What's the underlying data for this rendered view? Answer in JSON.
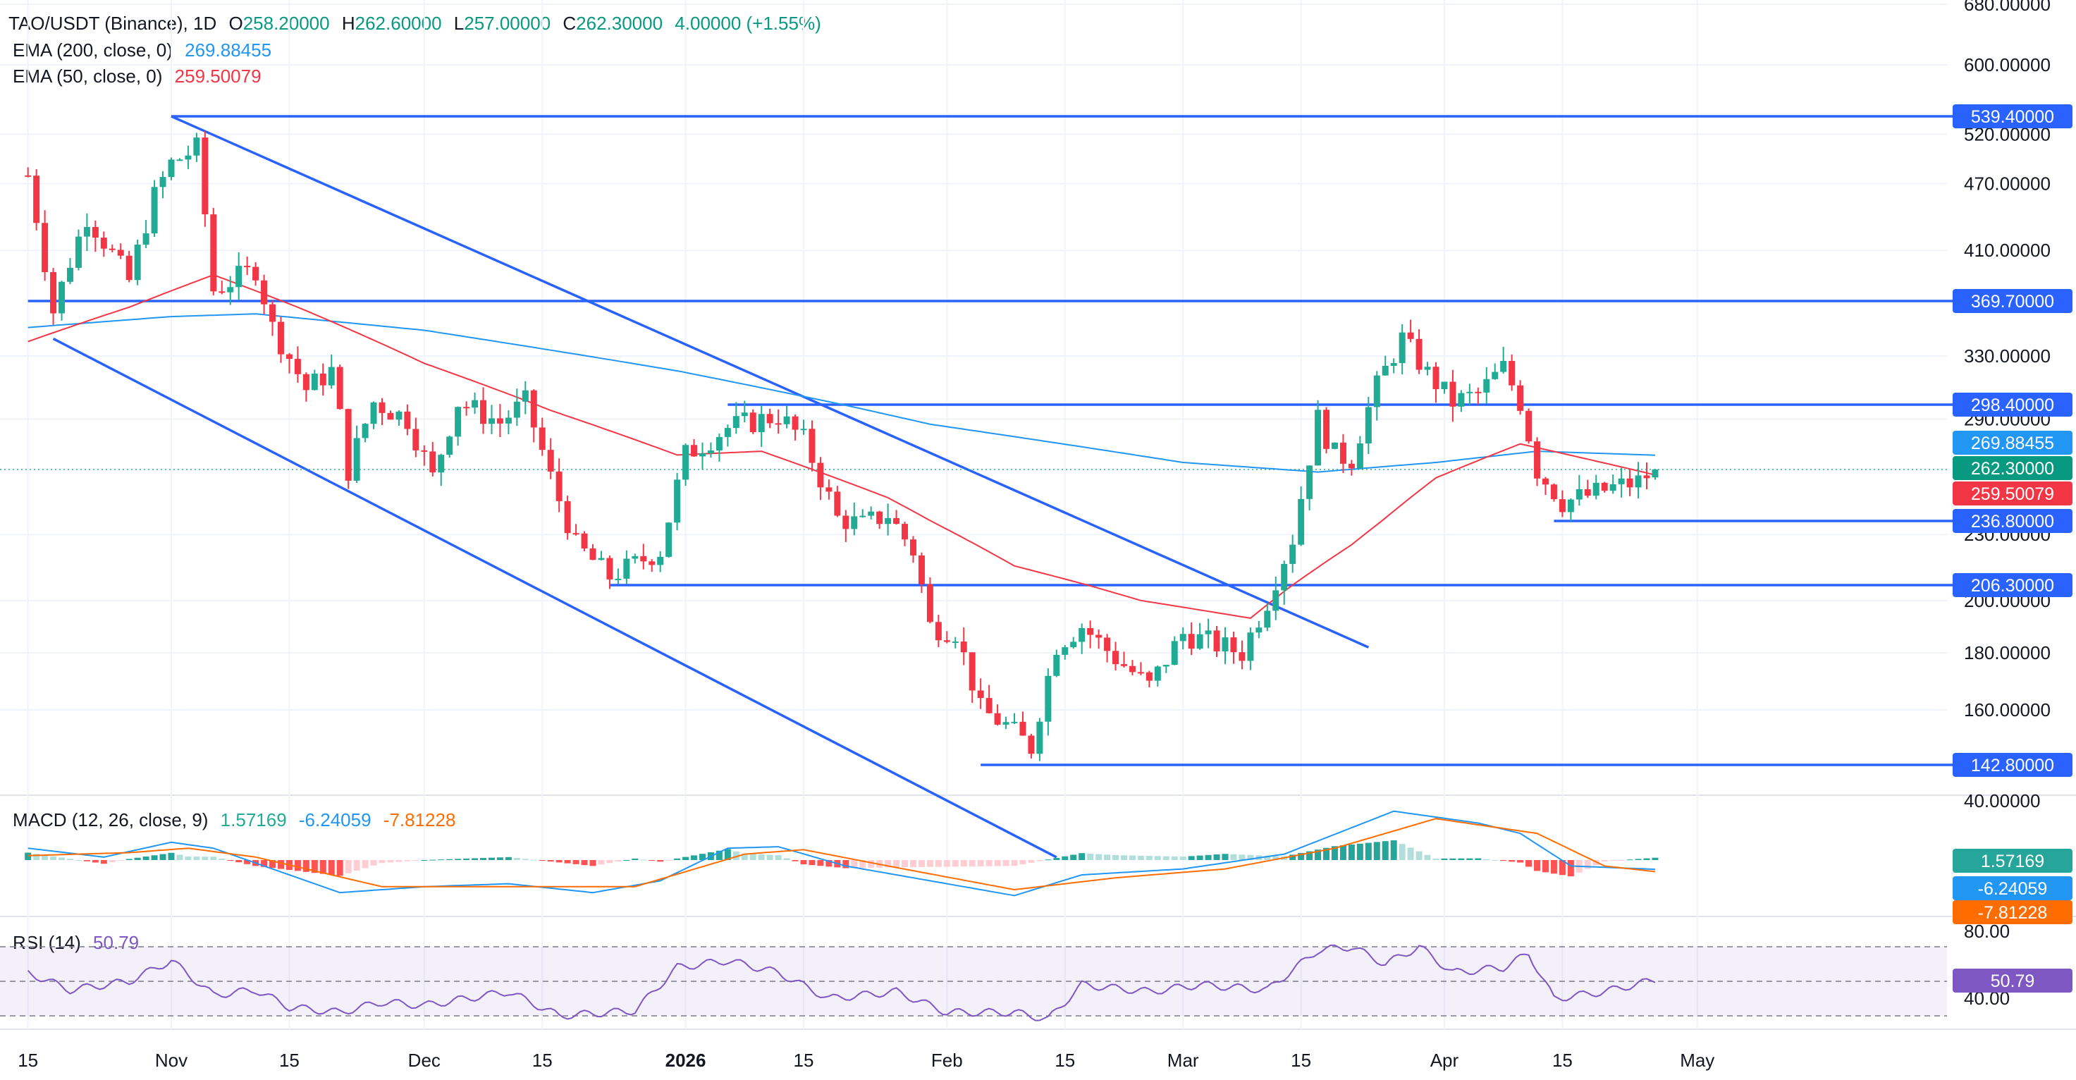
{
  "header": {
    "symbol": "TAO/USDT (Binance), 1D",
    "open_label": "O",
    "open": "258.20000",
    "high_label": "H",
    "high": "262.60000",
    "low_label": "L",
    "low": "257.00000",
    "close_label": "C",
    "close": "262.30000",
    "change": "4.00000 (+1.55%)",
    "ema200_label": "EMA (200, close, 0)",
    "ema200_value": "269.88455",
    "ema50_label": "EMA (50, close, 0)",
    "ema50_value": "259.50079",
    "macd_label": "MACD (12, 26, close, 9)",
    "macd_hist": "1.57169",
    "macd_line": "-6.24059",
    "macd_signal": "-7.81228",
    "rsi_label": "RSI (14)",
    "rsi_value": "50.79"
  },
  "colors": {
    "up": "#22ab94",
    "down": "#f23645",
    "line_blue": "#2962ff",
    "ema200": "#2196f3",
    "ema50": "#f23645",
    "macd": "#2196f3",
    "signal": "#ff6d00",
    "rsi": "#7e57c2"
  },
  "chart_data": {
    "type": "candlestick",
    "symbol": "TAO/USDT (Binance), 1D",
    "price_axis_ticks": [
      {
        "label": "680.00000",
        "v": 680
      },
      {
        "label": "600.00000",
        "v": 600
      },
      {
        "label": "520.00000",
        "v": 520
      },
      {
        "label": "470.00000",
        "v": 470
      },
      {
        "label": "410.00000",
        "v": 410
      },
      {
        "label": "330.00000",
        "v": 330
      },
      {
        "label": "290.00000",
        "v": 290
      },
      {
        "label": "230.00000",
        "v": 230
      },
      {
        "label": "200.00000",
        "v": 200
      },
      {
        "label": "180.00000",
        "v": 180
      },
      {
        "label": "160.00000",
        "v": 160
      },
      {
        "label": "40.00000",
        "v": 40
      }
    ],
    "x_axis_labels": [
      {
        "label": "15",
        "day": -17
      },
      {
        "label": "Nov",
        "day": 0
      },
      {
        "label": "15",
        "day": 14
      },
      {
        "label": "Dec",
        "day": 30
      },
      {
        "label": "15",
        "day": 44
      },
      {
        "label": "2026",
        "day": 61
      },
      {
        "label": "15",
        "day": 75
      },
      {
        "label": "Feb",
        "day": 92
      },
      {
        "label": "15",
        "day": 106
      },
      {
        "label": "Mar",
        "day": 120
      },
      {
        "label": "15",
        "day": 134
      },
      {
        "label": "Apr",
        "day": 151
      },
      {
        "label": "15",
        "day": 165
      },
      {
        "label": "May",
        "day": 181
      }
    ],
    "horizontal_levels": [
      {
        "label": "539.40000",
        "v": 539.4,
        "from_day": 0
      },
      {
        "label": "369.70000",
        "v": 369.7,
        "from_day": -17
      },
      {
        "label": "298.40000",
        "v": 298.4,
        "from_day": 66
      },
      {
        "label": "236.80000",
        "v": 236.8,
        "from_day": 164
      },
      {
        "label": "206.30000",
        "v": 206.3,
        "from_day": 52
      },
      {
        "label": "142.80000",
        "v": 142.8,
        "from_day": 96
      }
    ],
    "channel_lines": [
      {
        "from": {
          "day": 0,
          "v": 539.4
        },
        "to": {
          "day": 142,
          "v": 182
        }
      },
      {
        "from": {
          "day": -14,
          "v": 342
        },
        "to": {
          "day": 105,
          "v": 118
        }
      }
    ],
    "current_price_tags": [
      {
        "label": "269.88455",
        "v": 269.88455,
        "series": "EMA (200, close, 0)"
      },
      {
        "label": "262.30000",
        "v": 262.3,
        "series": "Close"
      },
      {
        "label": "259.50079",
        "v": 259.50079,
        "series": "EMA (50, close, 0)"
      }
    ],
    "anchors": [
      {
        "day": -17,
        "close": 478
      },
      {
        "day": -14,
        "close": 362
      },
      {
        "day": -10,
        "close": 440
      },
      {
        "day": -5,
        "close": 385
      },
      {
        "day": -2,
        "close": 458
      },
      {
        "day": 0,
        "close": 490
      },
      {
        "day": 3,
        "close": 505
      },
      {
        "day": 5,
        "close": 378
      },
      {
        "day": 10,
        "close": 395
      },
      {
        "day": 12,
        "close": 350
      },
      {
        "day": 16,
        "close": 308
      },
      {
        "day": 19,
        "close": 320
      },
      {
        "day": 21,
        "close": 262
      },
      {
        "day": 24,
        "close": 300
      },
      {
        "day": 28,
        "close": 290
      },
      {
        "day": 31,
        "close": 258
      },
      {
        "day": 34,
        "close": 300
      },
      {
        "day": 39,
        "close": 288
      },
      {
        "day": 42,
        "close": 300
      },
      {
        "day": 45,
        "close": 258
      },
      {
        "day": 48,
        "close": 225
      },
      {
        "day": 52,
        "close": 210
      },
      {
        "day": 58,
        "close": 222
      },
      {
        "day": 61,
        "close": 270
      },
      {
        "day": 66,
        "close": 285
      },
      {
        "day": 72,
        "close": 292
      },
      {
        "day": 75,
        "close": 278
      },
      {
        "day": 79,
        "close": 238
      },
      {
        "day": 82,
        "close": 235
      },
      {
        "day": 85,
        "close": 240
      },
      {
        "day": 88,
        "close": 222
      },
      {
        "day": 90,
        "close": 190
      },
      {
        "day": 93,
        "close": 188
      },
      {
        "day": 96,
        "close": 160
      },
      {
        "day": 99,
        "close": 155
      },
      {
        "day": 102,
        "close": 148
      },
      {
        "day": 105,
        "close": 183
      },
      {
        "day": 108,
        "close": 190
      },
      {
        "day": 112,
        "close": 178
      },
      {
        "day": 116,
        "close": 168
      },
      {
        "day": 120,
        "close": 187
      },
      {
        "day": 124,
        "close": 183
      },
      {
        "day": 127,
        "close": 180
      },
      {
        "day": 130,
        "close": 200
      },
      {
        "day": 133,
        "close": 228
      },
      {
        "day": 136,
        "close": 290
      },
      {
        "day": 138,
        "close": 270
      },
      {
        "day": 140,
        "close": 268
      },
      {
        "day": 143,
        "close": 310
      },
      {
        "day": 146,
        "close": 342
      },
      {
        "day": 149,
        "close": 318
      },
      {
        "day": 152,
        "close": 300
      },
      {
        "day": 155,
        "close": 305
      },
      {
        "day": 158,
        "close": 322
      },
      {
        "day": 160,
        "close": 300
      },
      {
        "day": 162,
        "close": 262
      },
      {
        "day": 165,
        "close": 246
      },
      {
        "day": 168,
        "close": 249
      },
      {
        "day": 171,
        "close": 253
      },
      {
        "day": 174,
        "close": 256
      },
      {
        "day": 176,
        "close": 262.3
      }
    ],
    "ema200": {
      "name": "EMA (200, close, 0)",
      "value": 269.88455,
      "points": [
        {
          "day": -17,
          "v": 350
        },
        {
          "day": 0,
          "v": 358
        },
        {
          "day": 10,
          "v": 360
        },
        {
          "day": 30,
          "v": 348
        },
        {
          "day": 60,
          "v": 320
        },
        {
          "day": 90,
          "v": 287
        },
        {
          "day": 120,
          "v": 266
        },
        {
          "day": 136,
          "v": 261
        },
        {
          "day": 150,
          "v": 266
        },
        {
          "day": 162,
          "v": 272
        },
        {
          "day": 176,
          "v": 269.88455
        }
      ]
    },
    "ema50": {
      "name": "EMA (50, close, 0)",
      "value": 259.50079,
      "points": [
        {
          "day": -17,
          "v": 340
        },
        {
          "day": -5,
          "v": 365
        },
        {
          "day": 5,
          "v": 390
        },
        {
          "day": 15,
          "v": 365
        },
        {
          "day": 30,
          "v": 325
        },
        {
          "day": 45,
          "v": 295
        },
        {
          "day": 60,
          "v": 270
        },
        {
          "day": 70,
          "v": 272
        },
        {
          "day": 85,
          "v": 248
        },
        {
          "day": 100,
          "v": 215
        },
        {
          "day": 115,
          "v": 200
        },
        {
          "day": 128,
          "v": 193
        },
        {
          "day": 140,
          "v": 225
        },
        {
          "day": 150,
          "v": 258
        },
        {
          "day": 160,
          "v": 276
        },
        {
          "day": 176,
          "v": 259.50079
        }
      ]
    },
    "macd": {
      "name": "MACD (12, 26, close, 9)",
      "histogram": 1.57169,
      "macd_line": -6.24059,
      "signal_line": -7.81228,
      "y_range": [
        -40,
        40
      ],
      "macd_points": [
        {
          "day": -17,
          "v": 8
        },
        {
          "day": -8,
          "v": 2
        },
        {
          "day": 0,
          "v": 12
        },
        {
          "day": 5,
          "v": 8
        },
        {
          "day": 20,
          "v": -22
        },
        {
          "day": 30,
          "v": -18
        },
        {
          "day": 40,
          "v": -16
        },
        {
          "day": 50,
          "v": -22
        },
        {
          "day": 58,
          "v": -14
        },
        {
          "day": 66,
          "v": 8
        },
        {
          "day": 72,
          "v": 9
        },
        {
          "day": 80,
          "v": -4
        },
        {
          "day": 90,
          "v": -14
        },
        {
          "day": 100,
          "v": -24
        },
        {
          "day": 108,
          "v": -10
        },
        {
          "day": 120,
          "v": -6
        },
        {
          "day": 132,
          "v": 4
        },
        {
          "day": 145,
          "v": 33
        },
        {
          "day": 155,
          "v": 25
        },
        {
          "day": 160,
          "v": 18
        },
        {
          "day": 166,
          "v": -4
        },
        {
          "day": 176,
          "v": -6.24059
        }
      ],
      "signal_points": [
        {
          "day": -17,
          "v": 3
        },
        {
          "day": -5,
          "v": 5
        },
        {
          "day": 2,
          "v": 8
        },
        {
          "day": 10,
          "v": 2
        },
        {
          "day": 25,
          "v": -18
        },
        {
          "day": 40,
          "v": -18
        },
        {
          "day": 55,
          "v": -18
        },
        {
          "day": 68,
          "v": 4
        },
        {
          "day": 75,
          "v": 7
        },
        {
          "day": 85,
          "v": -4
        },
        {
          "day": 100,
          "v": -20
        },
        {
          "day": 112,
          "v": -12
        },
        {
          "day": 125,
          "v": -6
        },
        {
          "day": 138,
          "v": 8
        },
        {
          "day": 150,
          "v": 28
        },
        {
          "day": 162,
          "v": 18
        },
        {
          "day": 170,
          "v": -4
        },
        {
          "day": 176,
          "v": -7.81228
        }
      ]
    },
    "rsi": {
      "name": "RSI (14)",
      "value": 50.79,
      "bands": [
        30,
        70
      ],
      "axis_labels": [
        "80.00",
        "40.00"
      ],
      "points": [
        {
          "day": -17,
          "v": 55
        },
        {
          "day": -12,
          "v": 45
        },
        {
          "day": -5,
          "v": 50
        },
        {
          "day": 0,
          "v": 62
        },
        {
          "day": 5,
          "v": 42
        },
        {
          "day": 10,
          "v": 45
        },
        {
          "day": 14,
          "v": 35
        },
        {
          "day": 20,
          "v": 32
        },
        {
          "day": 25,
          "v": 38
        },
        {
          "day": 30,
          "v": 36
        },
        {
          "day": 40,
          "v": 44
        },
        {
          "day": 46,
          "v": 30
        },
        {
          "day": 55,
          "v": 33
        },
        {
          "day": 60,
          "v": 58
        },
        {
          "day": 66,
          "v": 62
        },
        {
          "day": 72,
          "v": 55
        },
        {
          "day": 78,
          "v": 40
        },
        {
          "day": 86,
          "v": 44
        },
        {
          "day": 92,
          "v": 32
        },
        {
          "day": 100,
          "v": 32
        },
        {
          "day": 104,
          "v": 28
        },
        {
          "day": 108,
          "v": 48
        },
        {
          "day": 116,
          "v": 44
        },
        {
          "day": 122,
          "v": 48
        },
        {
          "day": 130,
          "v": 45
        },
        {
          "day": 136,
          "v": 68
        },
        {
          "day": 140,
          "v": 70
        },
        {
          "day": 144,
          "v": 60
        },
        {
          "day": 148,
          "v": 70
        },
        {
          "day": 152,
          "v": 55
        },
        {
          "day": 158,
          "v": 58
        },
        {
          "day": 161,
          "v": 66
        },
        {
          "day": 164,
          "v": 40
        },
        {
          "day": 170,
          "v": 44
        },
        {
          "day": 176,
          "v": 50.79
        }
      ]
    },
    "macd_axis_tags": [
      "1.57169",
      "-6.24059",
      "-7.81228"
    ],
    "rsi_axis_tag": "50.79"
  }
}
